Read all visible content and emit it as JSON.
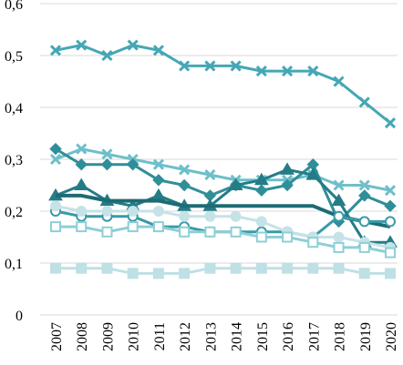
{
  "chart_data": {
    "type": "line",
    "title": "",
    "xlabel": "",
    "ylabel": "",
    "x": [
      "2007",
      "2008",
      "2009",
      "2010",
      "2011",
      "2012",
      "2013",
      "2014",
      "2015",
      "2016",
      "2017",
      "2018",
      "2019",
      "2020"
    ],
    "y_ticks": [
      "0",
      "0,1",
      "0,2",
      "0,3",
      "0,4",
      "0,5",
      "0,6"
    ],
    "ylim": [
      0,
      0.6
    ],
    "grid": "horizontal",
    "legend": "none",
    "series": [
      {
        "color": "#45a7b5",
        "marker": "x",
        "filled": true,
        "width": 3,
        "values": [
          0.51,
          0.52,
          0.5,
          0.52,
          0.51,
          0.48,
          0.48,
          0.48,
          0.47,
          0.47,
          0.47,
          0.45,
          0.41,
          0.37
        ]
      },
      {
        "color": "#6ebfc9",
        "marker": "x",
        "filled": true,
        "width": 3,
        "values": [
          0.3,
          0.32,
          0.31,
          0.3,
          0.29,
          0.28,
          0.27,
          0.26,
          0.26,
          0.26,
          0.27,
          0.25,
          0.25,
          0.24
        ]
      },
      {
        "color": "#2f8e99",
        "marker": "diamond",
        "filled": true,
        "width": 3,
        "values": [
          0.32,
          0.29,
          0.29,
          0.29,
          0.26,
          0.25,
          0.23,
          0.25,
          0.24,
          0.25,
          0.29,
          0.18,
          0.23,
          0.21
        ]
      },
      {
        "color": "#247c86",
        "marker": "triangle",
        "filled": true,
        "width": 3,
        "values": [
          0.23,
          0.25,
          0.22,
          0.21,
          0.23,
          0.21,
          0.21,
          0.25,
          0.26,
          0.28,
          0.27,
          0.22,
          0.14,
          0.14
        ]
      },
      {
        "color": "#1e6b74",
        "marker": "none",
        "filled": true,
        "width": 4,
        "values": [
          0.23,
          0.23,
          0.22,
          0.22,
          0.22,
          0.21,
          0.21,
          0.21,
          0.21,
          0.21,
          0.21,
          0.19,
          0.18,
          0.17
        ]
      },
      {
        "color": "#3a9aa6",
        "marker": "circle",
        "filled": false,
        "width": 3,
        "values": [
          0.2,
          0.19,
          0.19,
          0.19,
          0.17,
          0.17,
          0.16,
          0.16,
          0.16,
          0.16,
          0.15,
          0.19,
          0.18,
          0.18
        ]
      },
      {
        "color": "#c5e3e7",
        "marker": "circle",
        "filled": true,
        "width": 3,
        "values": [
          0.21,
          0.2,
          0.2,
          0.2,
          0.2,
          0.19,
          0.19,
          0.19,
          0.18,
          0.16,
          0.15,
          0.15,
          0.14,
          0.13
        ]
      },
      {
        "color": "#8ecfd6",
        "marker": "square",
        "filled": false,
        "width": 3,
        "values": [
          0.17,
          0.17,
          0.16,
          0.17,
          0.17,
          0.16,
          0.16,
          0.16,
          0.15,
          0.15,
          0.14,
          0.13,
          0.13,
          0.12
        ]
      },
      {
        "color": "#bfe0e5",
        "marker": "square",
        "filled": true,
        "width": 3,
        "values": [
          0.09,
          0.09,
          0.09,
          0.08,
          0.08,
          0.08,
          0.09,
          0.09,
          0.09,
          0.09,
          0.09,
          0.09,
          0.08,
          0.08
        ]
      }
    ]
  }
}
